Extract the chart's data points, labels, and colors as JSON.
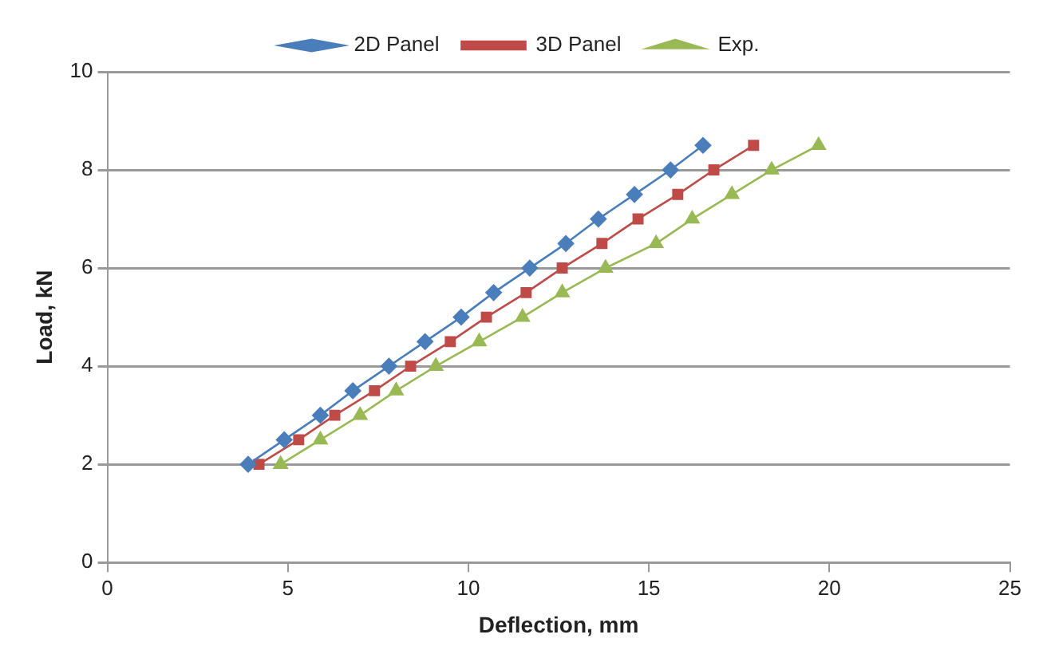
{
  "chart_data": {
    "type": "line",
    "xlabel": "Deflection, mm",
    "ylabel": "Load, kN",
    "legend": "top",
    "grid": "y",
    "line_style": "solid",
    "xlim": [
      0,
      25
    ],
    "xticks": [
      0,
      5,
      10,
      15,
      20,
      25
    ],
    "ylim": [
      0,
      10
    ],
    "yticks": [
      0,
      2,
      4,
      6,
      8,
      10
    ],
    "series": [
      {
        "name": "2D Panel",
        "color": "#4a7ebb",
        "marker": "diamond",
        "x": [
          3.9,
          4.9,
          5.9,
          6.8,
          7.8,
          8.8,
          9.8,
          10.7,
          11.7,
          12.7,
          13.6,
          14.6,
          15.6,
          16.5
        ],
        "values": [
          2,
          2.5,
          3,
          3.5,
          4,
          4.5,
          5,
          5.5,
          6,
          6.5,
          7,
          7.5,
          8,
          8.5
        ]
      },
      {
        "name": "3D Panel",
        "color": "#be4b48",
        "marker": "square",
        "x": [
          4.2,
          5.3,
          6.3,
          7.4,
          8.4,
          9.5,
          10.5,
          11.6,
          12.6,
          13.7,
          14.7,
          15.8,
          16.8,
          17.9
        ],
        "values": [
          2,
          2.5,
          3,
          3.5,
          4,
          4.5,
          5,
          5.5,
          6,
          6.5,
          7,
          7.5,
          8,
          8.5
        ]
      },
      {
        "name": "Exp.",
        "color": "#98b954",
        "marker": "triangle",
        "x": [
          4.8,
          5.9,
          7.0,
          8.0,
          9.1,
          10.3,
          11.5,
          12.6,
          13.8,
          15.2,
          16.2,
          17.3,
          18.4,
          19.7
        ],
        "values": [
          2,
          2.5,
          3,
          3.5,
          4,
          4.5,
          5,
          5.5,
          6,
          6.5,
          7,
          7.5,
          8,
          8.5
        ]
      }
    ]
  }
}
